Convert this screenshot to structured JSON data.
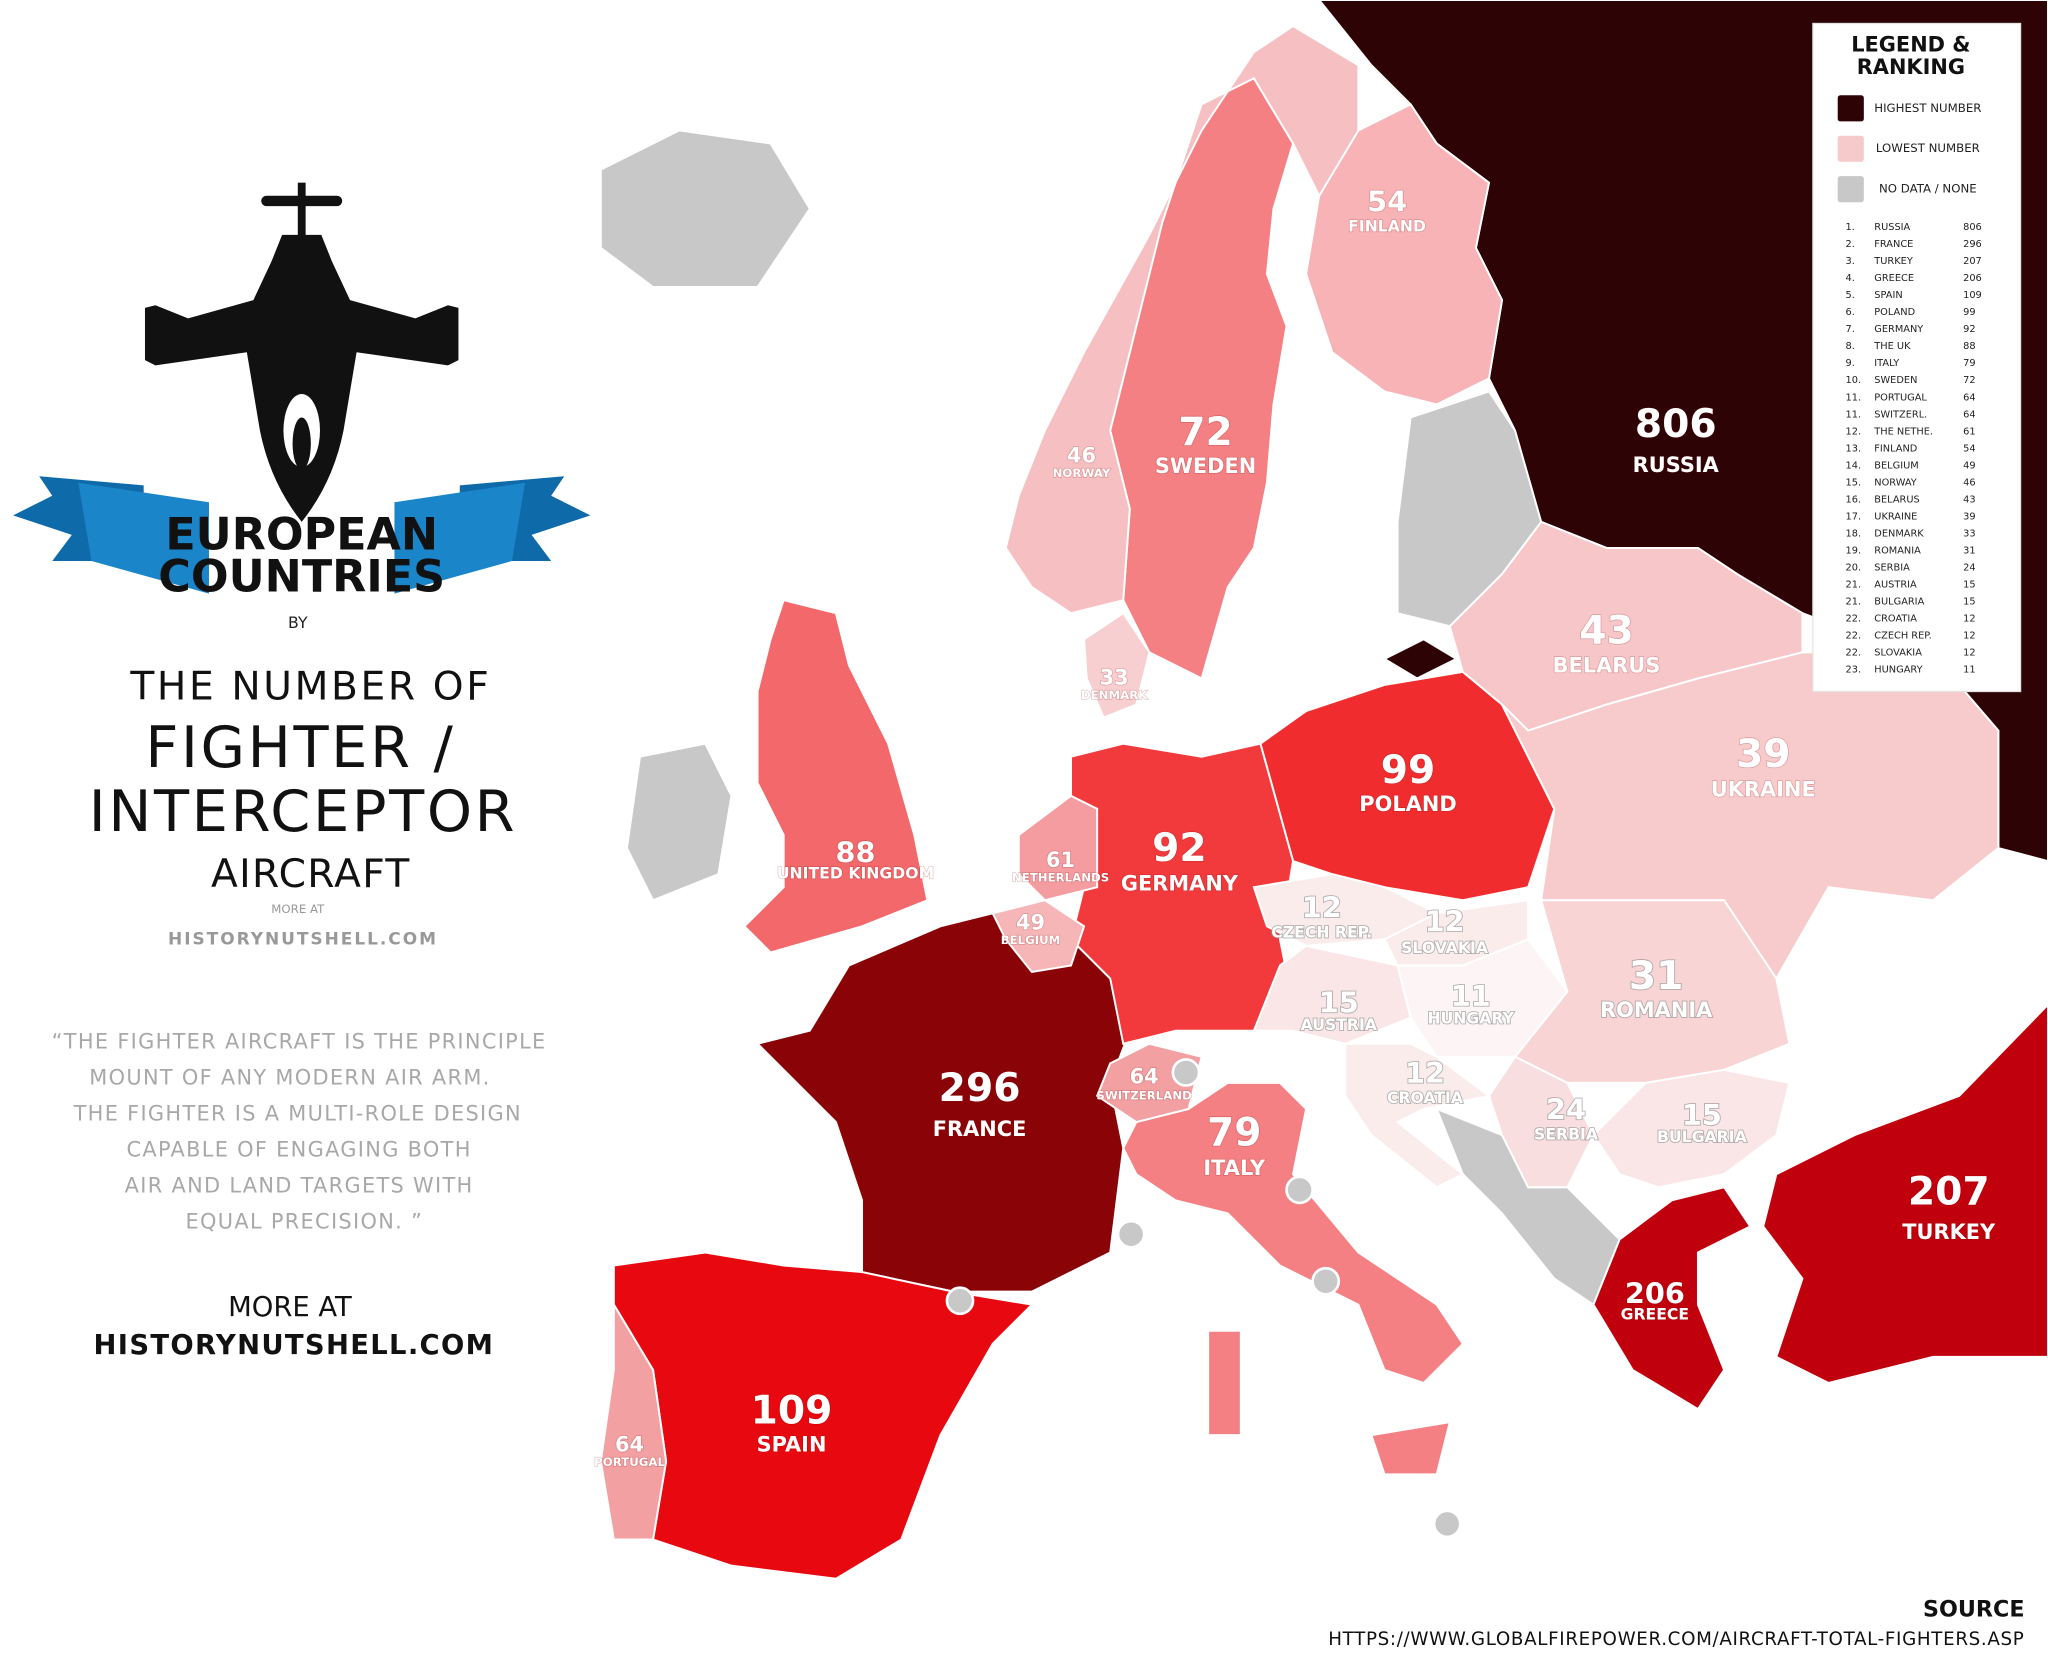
{
  "header": {
    "ribbon": [
      "EUROPEAN",
      "COUNTRIES"
    ],
    "by": "BY",
    "title_lines": [
      "THE NUMBER OF",
      "FIGHTER /",
      "INTERCEPTOR",
      "AIRCRAFT"
    ],
    "more_at_small": "MORE AT",
    "site_small": "HISTORYNUTSHELL.COM"
  },
  "quote": [
    "“THE FIGHTER AIRCRAFT IS THE PRINCIPLE",
    "MOUNT OF ANY MODERN AIR ARM.",
    "THE FIGHTER IS A MULTI-ROLE DESIGN",
    "CAPABLE OF ENGAGING BOTH",
    "AIR AND LAND TARGETS WITH",
    "EQUAL PRECISION. ”"
  ],
  "footer": {
    "more_at": "MORE AT",
    "site": "HISTORYNUTSHELL.COM"
  },
  "legend": {
    "title": [
      "LEGEND &",
      "RANKING"
    ],
    "keys": [
      {
        "label": "HIGHEST NUMBER",
        "color": "#2e0306"
      },
      {
        "label": "LOWEST NUMBER",
        "color": "#f6c9cb"
      },
      {
        "label": "NO DATA / NONE",
        "color": "#c8c8c8"
      }
    ],
    "ranking": [
      [
        "1.",
        "RUSSIA",
        806
      ],
      [
        "2.",
        "FRANCE",
        296
      ],
      [
        "3.",
        "TURKEY",
        207
      ],
      [
        "4.",
        "GREECE",
        206
      ],
      [
        "5.",
        "SPAIN",
        109
      ],
      [
        "6.",
        "POLAND",
        99
      ],
      [
        "7.",
        "GERMANY",
        92
      ],
      [
        "8.",
        "THE UK",
        88
      ],
      [
        "9.",
        "ITALY",
        79
      ],
      [
        "10.",
        "SWEDEN",
        72
      ],
      [
        "11.",
        "PORTUGAL",
        64
      ],
      [
        "11.",
        "SWITZERL.",
        64
      ],
      [
        "12.",
        "THE NETHE.",
        61
      ],
      [
        "13.",
        "FINLAND",
        54
      ],
      [
        "14.",
        "BELGIUM",
        49
      ],
      [
        "15.",
        "NORWAY",
        46
      ],
      [
        "16.",
        "BELARUS",
        43
      ],
      [
        "17.",
        "UKRAINE",
        39
      ],
      [
        "18.",
        "DENMARK",
        33
      ],
      [
        "19.",
        "ROMANIA",
        31
      ],
      [
        "20.",
        "SERBIA",
        24
      ],
      [
        "21.",
        "AUSTRIA",
        15
      ],
      [
        "21.",
        "BULGARIA",
        15
      ],
      [
        "22.",
        "CROATIA",
        12
      ],
      [
        "22.",
        "CZECH REP.",
        12
      ],
      [
        "22.",
        "SLOVAKIA",
        12
      ],
      [
        "23.",
        "HUNGARY",
        11
      ]
    ]
  },
  "map": {
    "countries": [
      {
        "name": "RUSSIA",
        "value": 806,
        "color": "#2e0306"
      },
      {
        "name": "FRANCE",
        "value": 296,
        "color": "#8a0407"
      },
      {
        "name": "TURKEY",
        "value": 207,
        "color": "#c0000c"
      },
      {
        "name": "GREECE",
        "value": 206,
        "color": "#c0000c"
      },
      {
        "name": "SPAIN",
        "value": 109,
        "color": "#e8080f"
      },
      {
        "name": "POLAND",
        "value": 99,
        "color": "#f02c2f"
      },
      {
        "name": "GERMANY",
        "value": 92,
        "color": "#f23a3d"
      },
      {
        "name": "UNITED KINGDOM",
        "value": 88,
        "color": "#f2686b"
      },
      {
        "name": "ITALY",
        "value": 79,
        "color": "#f48083"
      },
      {
        "name": "SWEDEN",
        "value": 72,
        "color": "#f48083"
      },
      {
        "name": "PORTUGAL",
        "value": 64,
        "color": "#f3a0a3"
      },
      {
        "name": "SWITZERLAND",
        "value": 64,
        "color": "#f3a0a3"
      },
      {
        "name": "NETHERLANDS",
        "value": 61,
        "color": "#f49ca0"
      },
      {
        "name": "FINLAND",
        "value": 54,
        "color": "#f7b3b5"
      },
      {
        "name": "BELGIUM",
        "value": 49,
        "color": "#f6b6b8"
      },
      {
        "name": "NORWAY",
        "value": 46,
        "color": "#f6bfc1"
      },
      {
        "name": "BELARUS",
        "value": 43,
        "color": "#f7c6c8"
      },
      {
        "name": "UKRAINE",
        "value": 39,
        "color": "#f7cacb"
      },
      {
        "name": "DENMARK",
        "value": 33,
        "color": "#f8cfd0"
      },
      {
        "name": "ROMANIA",
        "value": 31,
        "color": "#f8d4d5"
      },
      {
        "name": "SERBIA",
        "value": 24,
        "color": "#f9dedf"
      },
      {
        "name": "AUSTRIA",
        "value": 15,
        "color": "#fae6e6"
      },
      {
        "name": "BULGARIA",
        "value": 15,
        "color": "#fae6e6"
      },
      {
        "name": "CROATIA",
        "value": 12,
        "color": "#fbecec"
      },
      {
        "name": "CZECH REP.",
        "value": 12,
        "color": "#fbecec"
      },
      {
        "name": "SLOVAKIA",
        "value": 12,
        "color": "#fbecec"
      },
      {
        "name": "HUNGARY",
        "value": 11,
        "color": "#fdf5f5"
      }
    ],
    "no_data_color": "#c8c8c8"
  },
  "source": {
    "title": "SOURCE",
    "url": "HTTPS://WWW.GLOBALFIREPOWER.COM/AIRCRAFT-TOTAL-FIGHTERS.ASP"
  }
}
